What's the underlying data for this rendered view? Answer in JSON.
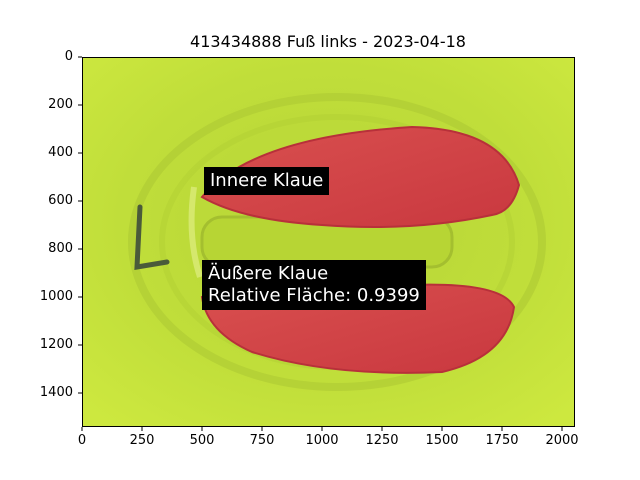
{
  "title": "413434888 Fuß links - 2023-04-18",
  "axes": {
    "x_ticks": [
      "0",
      "250",
      "500",
      "750",
      "1000",
      "1250",
      "1500",
      "1750",
      "2000"
    ],
    "y_ticks": [
      "0",
      "200",
      "400",
      "600",
      "800",
      "1000",
      "1200",
      "1400"
    ],
    "xlim": [
      0,
      2048
    ],
    "ylim": [
      1536,
      0
    ]
  },
  "image": {
    "background": "#c2e03a",
    "claw_color": "#d3454a",
    "marker_text": "L"
  },
  "annotations": {
    "inner": {
      "line1": "Innere Klaue"
    },
    "outer": {
      "line1": "Äußere Klaue",
      "line2": "Relative Fläche: 0.9399"
    }
  }
}
